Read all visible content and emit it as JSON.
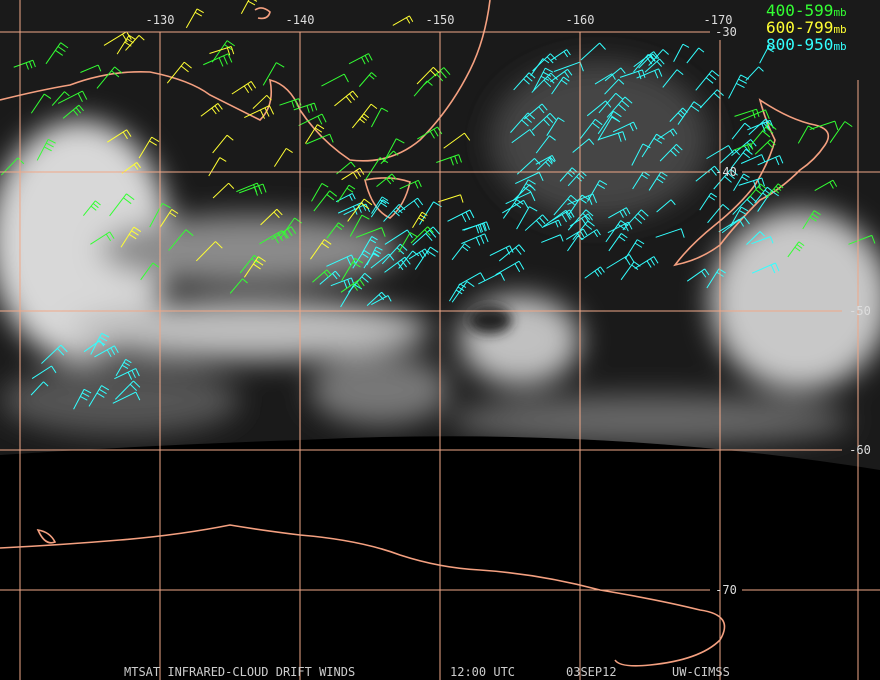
{
  "map": {
    "longitude_labels": [
      "-130",
      "-140",
      "-150",
      "-160",
      "-170"
    ],
    "latitude_labels": [
      "-30",
      "-40",
      "-50",
      "-60",
      "-70"
    ],
    "legend": [
      {
        "range": "400-599",
        "unit": "mb"
      },
      {
        "range": "600-799",
        "unit": "mb"
      },
      {
        "range": "800-950",
        "unit": "mb"
      }
    ],
    "footer": {
      "product": "MTSAT INFRARED-CLOUD DRIFT WINDS",
      "time": "12:00 UTC",
      "date": "03SEP12",
      "source": "UW-CIMSS"
    }
  }
}
